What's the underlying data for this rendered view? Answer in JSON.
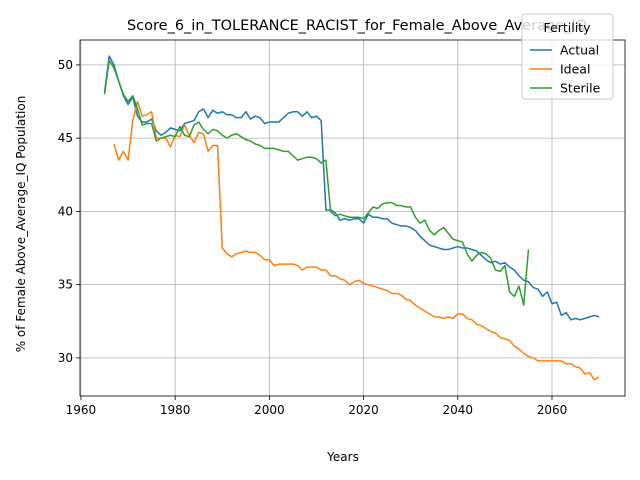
{
  "chart_data": {
    "type": "line",
    "title": "Score_6_in_TOLERANCE_RACIST_for_Female_Above_Average_IQ",
    "xlabel": "Years",
    "ylabel": "% of Female Above_Average_IQ Population",
    "xlim": [
      1959.8,
      2075.5
    ],
    "ylim": [
      27.4,
      51.7
    ],
    "xticks": [
      1960,
      1980,
      2000,
      2020,
      2040,
      2060
    ],
    "yticks": [
      30,
      35,
      40,
      45,
      50
    ],
    "grid": true,
    "legend": {
      "title": "Fertility",
      "placement": "top-right"
    },
    "series": [
      {
        "name": "Actual",
        "color": "#1f77b4",
        "x": [
          1965,
          1966,
          1967,
          1968,
          1969,
          1970,
          1971,
          1972,
          1973,
          1974,
          1975,
          1976,
          1977,
          1978,
          1979,
          1980,
          1981,
          1982,
          1983,
          1984,
          1985,
          1986,
          1987,
          1988,
          1989,
          1990,
          1991,
          1992,
          1993,
          1994,
          1995,
          1996,
          1997,
          1998,
          1999,
          2000,
          2001,
          2002,
          2003,
          2004,
          2005,
          2006,
          2007,
          2008,
          2009,
          2010,
          2011,
          2012,
          2013,
          2014,
          2015,
          2016,
          2017,
          2018,
          2019,
          2020,
          2021,
          2022,
          2023,
          2024,
          2025,
          2026,
          2027,
          2028,
          2029,
          2030,
          2031,
          2032,
          2033,
          2034,
          2035,
          2036,
          2037,
          2038,
          2039,
          2040,
          2041,
          2042,
          2043,
          2044,
          2045,
          2046,
          2047,
          2048,
          2049,
          2050,
          2051,
          2052,
          2053,
          2054,
          2055,
          2056,
          2057,
          2058,
          2059,
          2060,
          2061,
          2062,
          2063,
          2064,
          2065,
          2066,
          2067,
          2068,
          2069,
          2070
        ],
        "y": [
          48.1,
          50.6,
          50.0,
          48.9,
          47.9,
          47.3,
          47.8,
          46.5,
          46.1,
          46.1,
          46.3,
          45.5,
          45.2,
          45.4,
          45.7,
          45.6,
          45.5,
          46.0,
          46.1,
          46.2,
          46.8,
          47.0,
          46.4,
          46.9,
          46.7,
          46.8,
          46.6,
          46.6,
          46.4,
          46.4,
          46.8,
          46.3,
          46.5,
          46.4,
          46.0,
          46.1,
          46.1,
          46.1,
          46.4,
          46.7,
          46.8,
          46.8,
          46.5,
          46.8,
          46.4,
          46.5,
          46.2,
          40.1,
          40.1,
          39.9,
          39.4,
          39.5,
          39.4,
          39.5,
          39.5,
          39.2,
          39.8,
          39.6,
          39.6,
          39.5,
          39.5,
          39.2,
          39.1,
          39.0,
          39.0,
          38.9,
          38.7,
          38.3,
          38.0,
          37.7,
          37.6,
          37.5,
          37.4,
          37.4,
          37.5,
          37.6,
          37.5,
          37.5,
          37.4,
          37.3,
          37.0,
          36.7,
          36.5,
          36.6,
          36.4,
          36.5,
          36.2,
          36.0,
          35.6,
          35.3,
          35.2,
          34.8,
          34.7,
          34.2,
          34.5,
          33.7,
          33.8,
          32.9,
          33.1,
          32.6,
          32.7,
          32.6,
          32.7,
          32.8,
          32.9,
          32.8
        ]
      },
      {
        "name": "Ideal",
        "color": "#ff7f0e",
        "x": [
          1967,
          1968,
          1969,
          1970,
          1971,
          1972,
          1973,
          1974,
          1975,
          1976,
          1977,
          1978,
          1979,
          1980,
          1981,
          1982,
          1983,
          1984,
          1985,
          1986,
          1987,
          1988,
          1989,
          1990,
          1991,
          1992,
          1993,
          1994,
          1995,
          1996,
          1997,
          1998,
          1999,
          2000,
          2001,
          2002,
          2003,
          2004,
          2005,
          2006,
          2007,
          2008,
          2009,
          2010,
          2011,
          2012,
          2013,
          2014,
          2015,
          2016,
          2017,
          2018,
          2019,
          2020,
          2021,
          2022,
          2023,
          2024,
          2025,
          2026,
          2027,
          2028,
          2029,
          2030,
          2031,
          2032,
          2033,
          2034,
          2035,
          2036,
          2037,
          2038,
          2039,
          2040,
          2041,
          2042,
          2043,
          2044,
          2045,
          2046,
          2047,
          2048,
          2049,
          2050,
          2051,
          2052,
          2053,
          2054,
          2055,
          2056,
          2057,
          2058,
          2059,
          2060,
          2061,
          2062,
          2063,
          2064,
          2065,
          2066,
          2067,
          2068,
          2069,
          2070
        ],
        "y": [
          44.6,
          43.5,
          44.1,
          43.5,
          46.2,
          47.5,
          46.5,
          46.6,
          46.8,
          45.0,
          45.0,
          45.0,
          44.4,
          45.2,
          45.1,
          45.9,
          45.2,
          44.7,
          45.4,
          45.3,
          44.1,
          44.5,
          44.5,
          37.5,
          37.1,
          36.9,
          37.1,
          37.2,
          37.3,
          37.2,
          37.2,
          37.0,
          36.7,
          36.7,
          36.3,
          36.4,
          36.4,
          36.4,
          36.4,
          36.3,
          36.0,
          36.2,
          36.2,
          36.2,
          36.0,
          36.0,
          35.6,
          35.6,
          35.4,
          35.3,
          35.0,
          35.2,
          35.3,
          35.1,
          35.0,
          34.9,
          34.8,
          34.7,
          34.6,
          34.4,
          34.4,
          34.3,
          34.0,
          33.9,
          33.6,
          33.4,
          33.2,
          33.0,
          32.8,
          32.8,
          32.7,
          32.8,
          32.7,
          33.0,
          33.0,
          32.7,
          32.6,
          32.3,
          32.2,
          32.0,
          31.8,
          31.7,
          31.4,
          31.3,
          31.2,
          30.8,
          30.6,
          30.3,
          30.1,
          30.0,
          29.8,
          29.8,
          29.8,
          29.8,
          29.8,
          29.8,
          29.6,
          29.6,
          29.4,
          29.3,
          28.9,
          29.0,
          28.5,
          28.7
        ]
      },
      {
        "name": "Sterile",
        "color": "#2ca02c",
        "x": [
          1965,
          1966,
          1967,
          1968,
          1969,
          1970,
          1971,
          1972,
          1973,
          1974,
          1975,
          1976,
          1977,
          1978,
          1979,
          1980,
          1981,
          1982,
          1983,
          1984,
          1985,
          1986,
          1987,
          1988,
          1989,
          1990,
          1991,
          1992,
          1993,
          1994,
          1995,
          1996,
          1997,
          1998,
          1999,
          2000,
          2001,
          2002,
          2003,
          2004,
          2005,
          2006,
          2007,
          2008,
          2009,
          2010,
          2011,
          2012,
          2013,
          2014,
          2015,
          2016,
          2017,
          2018,
          2019,
          2020,
          2021,
          2022,
          2023,
          2024,
          2025,
          2026,
          2027,
          2028,
          2029,
          2030,
          2031,
          2032,
          2033,
          2034,
          2035,
          2036,
          2037,
          2038,
          2039,
          2040,
          2041,
          2042,
          2043,
          2044,
          2045,
          2046,
          2047,
          2048,
          2049,
          2050,
          2051,
          2052,
          2053,
          2054,
          2055
        ],
        "y": [
          48.0,
          50.3,
          49.8,
          48.9,
          48.0,
          47.5,
          47.9,
          47.0,
          45.9,
          46.0,
          46.0,
          44.8,
          45.0,
          45.1,
          45.2,
          45.1,
          45.8,
          45.2,
          45.1,
          45.9,
          46.1,
          45.6,
          45.3,
          45.6,
          45.5,
          45.2,
          45.0,
          45.2,
          45.3,
          45.1,
          44.9,
          44.8,
          44.6,
          44.5,
          44.3,
          44.3,
          44.3,
          44.2,
          44.1,
          44.1,
          43.8,
          43.5,
          43.6,
          43.7,
          43.7,
          43.6,
          43.3,
          43.5,
          40.0,
          39.7,
          39.8,
          39.7,
          39.6,
          39.6,
          39.6,
          39.5,
          39.9,
          40.3,
          40.2,
          40.5,
          40.6,
          40.6,
          40.4,
          40.4,
          40.3,
          40.3,
          39.6,
          39.2,
          39.4,
          38.7,
          38.4,
          38.7,
          38.9,
          38.5,
          38.1,
          38.0,
          37.9,
          37.1,
          36.6,
          37.0,
          37.2,
          37.1,
          36.8,
          36.0,
          35.9,
          36.3,
          34.5,
          34.2,
          34.9,
          33.6,
          37.4
        ]
      }
    ]
  }
}
